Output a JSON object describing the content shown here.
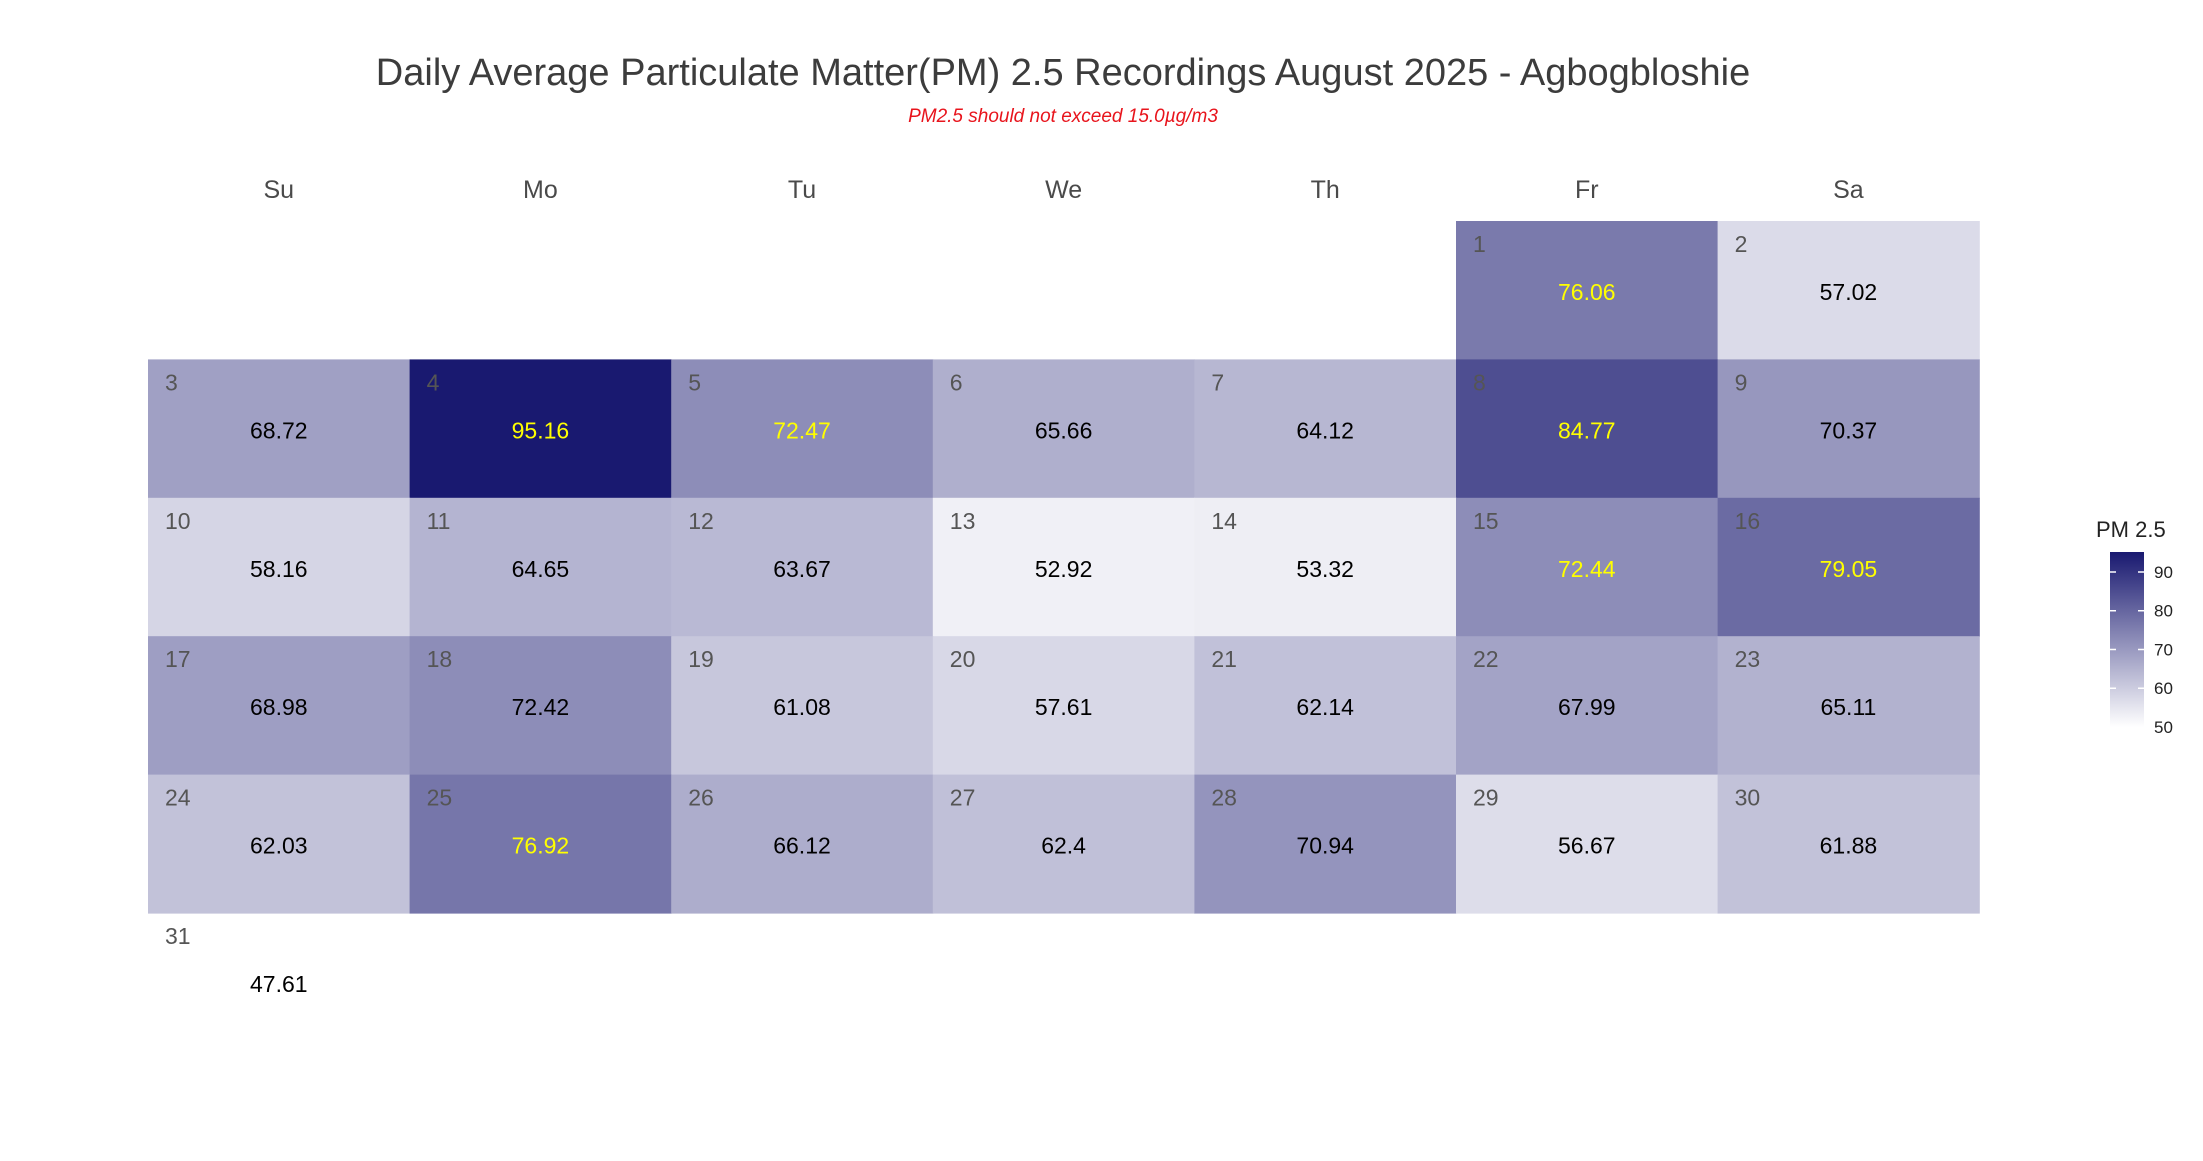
{
  "chart_data": {
    "type": "heatmap",
    "title": "Daily Average Particulate Matter(PM) 2.5 Recordings August 2025 -  Agbogbloshie",
    "subtitle": "PM2.5 should not exceed 15.0µg/m3",
    "weekdays": [
      "Su",
      "Mo",
      "Tu",
      "We",
      "Th",
      "Fr",
      "Sa"
    ],
    "first_weekday_index": 5,
    "days": [
      {
        "day": 1,
        "value": 76.06
      },
      {
        "day": 2,
        "value": 57.02
      },
      {
        "day": 3,
        "value": 68.72
      },
      {
        "day": 4,
        "value": 95.16
      },
      {
        "day": 5,
        "value": 72.47
      },
      {
        "day": 6,
        "value": 65.66
      },
      {
        "day": 7,
        "value": 64.12
      },
      {
        "day": 8,
        "value": 84.77
      },
      {
        "day": 9,
        "value": 70.37
      },
      {
        "day": 10,
        "value": 58.16
      },
      {
        "day": 11,
        "value": 64.65
      },
      {
        "day": 12,
        "value": 63.67
      },
      {
        "day": 13,
        "value": 52.92
      },
      {
        "day": 14,
        "value": 53.32
      },
      {
        "day": 15,
        "value": 72.44
      },
      {
        "day": 16,
        "value": 79.05
      },
      {
        "day": 17,
        "value": 68.98
      },
      {
        "day": 18,
        "value": 72.42
      },
      {
        "day": 19,
        "value": 61.08
      },
      {
        "day": 20,
        "value": 57.61
      },
      {
        "day": 21,
        "value": 62.14
      },
      {
        "day": 22,
        "value": 67.99
      },
      {
        "day": 23,
        "value": 65.11
      },
      {
        "day": 24,
        "value": 62.03
      },
      {
        "day": 25,
        "value": 76.92
      },
      {
        "day": 26,
        "value": 66.12
      },
      {
        "day": 27,
        "value": 62.4
      },
      {
        "day": 28,
        "value": 70.94
      },
      {
        "day": 29,
        "value": 56.67
      },
      {
        "day": 30,
        "value": 61.88
      },
      {
        "day": 31,
        "value": 47.61
      }
    ],
    "value_labels": [
      "76.06",
      "57.02",
      "68.72",
      "95.16",
      "72.47",
      "65.66",
      "64.12",
      "84.77",
      "70.37",
      "58.16",
      "64.65",
      "63.67",
      "52.92",
      "53.32",
      "72.44",
      "79.05",
      "68.98",
      "72.42",
      "61.08",
      "57.61",
      "62.14",
      "67.99",
      "65.11",
      "62.03",
      "76.92",
      "66.12",
      "62.4",
      "70.94",
      "56.67",
      "61.88",
      "47.61"
    ],
    "color_scale": {
      "low_value": 50,
      "high_value": 95.16,
      "low_color": "#ffffff",
      "high_color": "#191970",
      "tile_shown_from": 50
    },
    "label_color_threshold": 72.44,
    "label_color_high": "#ffff00",
    "label_color_low": "#000000",
    "legend": {
      "title": "PM 2.5",
      "ticks": [
        90,
        80,
        70,
        60,
        50
      ],
      "placement": "right"
    }
  }
}
